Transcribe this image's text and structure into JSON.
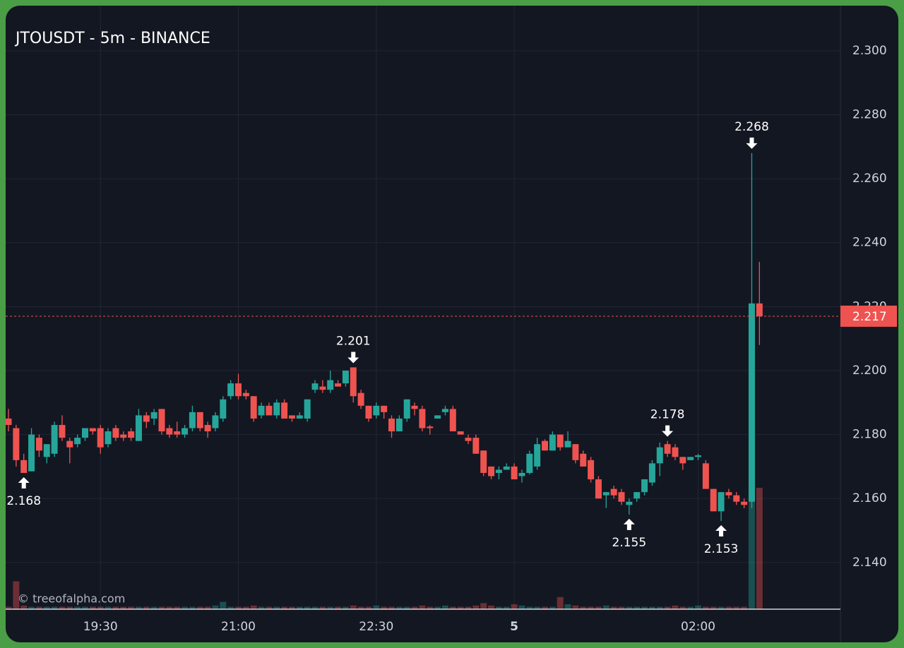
{
  "chart_data": {
    "type": "candlestick",
    "title": "JTOUSDT - 5m - BINANCE",
    "watermark": "© treeofalpha.com",
    "categories": [
      null,
      null,
      null,
      null,
      null,
      null,
      null,
      null,
      null,
      null,
      null,
      null,
      "19:30",
      null,
      null,
      null,
      null,
      null,
      null,
      null,
      null,
      null,
      null,
      null,
      null,
      null,
      null,
      null,
      null,
      null,
      "21:00",
      null,
      null,
      null,
      null,
      null,
      null,
      null,
      null,
      null,
      null,
      null,
      null,
      null,
      null,
      null,
      null,
      null,
      "22:30",
      null,
      null,
      null,
      null,
      null,
      null,
      null,
      null,
      null,
      null,
      null,
      null,
      null,
      null,
      null,
      null,
      null,
      "5",
      null,
      null,
      null,
      null,
      null,
      null,
      null,
      null,
      null,
      null,
      null,
      null,
      null,
      null,
      null,
      null,
      null,
      null,
      null,
      null,
      null,
      null,
      null,
      "02:00",
      null,
      null,
      null,
      null,
      null,
      null,
      null,
      null
    ],
    "open": [
      2.185,
      2.182,
      2.172,
      2.1685,
      2.179,
      2.173,
      2.174,
      2.183,
      2.178,
      2.177,
      2.179,
      2.182,
      2.182,
      2.177,
      2.182,
      2.18,
      2.181,
      2.178,
      2.186,
      2.185,
      2.188,
      2.182,
      2.181,
      2.18,
      2.182,
      2.187,
      2.183,
      2.182,
      2.185,
      2.192,
      2.196,
      2.193,
      2.192,
      2.186,
      2.189,
      2.186,
      2.19,
      2.186,
      2.185,
      2.185,
      2.194,
      2.195,
      2.194,
      2.196,
      2.196,
      2.201,
      2.193,
      2.189,
      2.186,
      2.189,
      2.185,
      2.181,
      2.185,
      2.189,
      2.188,
      2.1825,
      2.185,
      2.187,
      2.188,
      2.181,
      2.179,
      2.179,
      2.175,
      2.17,
      2.168,
      2.169,
      2.17,
      2.167,
      2.168,
      2.17,
      2.178,
      2.175,
      2.18,
      2.176,
      2.177,
      2.174,
      2.172,
      2.166,
      2.161,
      2.163,
      2.162,
      2.158,
      2.16,
      2.162,
      2.165,
      2.171,
      2.177,
      2.176,
      2.173,
      2.172,
      2.173,
      2.171,
      2.163,
      2.156,
      2.162,
      2.161,
      2.159,
      2.159,
      2.221
    ],
    "high": [
      2.188,
      2.183,
      2.174,
      2.182,
      2.18,
      2.177,
      2.184,
      2.186,
      2.179,
      2.18,
      2.182,
      2.182,
      2.183,
      2.182,
      2.183,
      2.181,
      2.182,
      2.188,
      2.187,
      2.188,
      2.188,
      2.183,
      2.184,
      2.183,
      2.189,
      2.187,
      2.184,
      2.187,
      2.192,
      2.197,
      2.199,
      2.194,
      2.192,
      2.19,
      2.19,
      2.191,
      2.191,
      2.186,
      2.187,
      2.191,
      2.197,
      2.197,
      2.2,
      2.197,
      2.2,
      2.201,
      2.194,
      2.189,
      2.19,
      2.189,
      2.186,
      2.186,
      2.191,
      2.19,
      2.189,
      2.183,
      2.186,
      2.189,
      2.189,
      2.181,
      2.18,
      2.18,
      2.175,
      2.17,
      2.17,
      2.171,
      2.171,
      2.169,
      2.175,
      2.179,
      2.1785,
      2.181,
      2.18,
      2.181,
      2.177,
      2.175,
      2.173,
      2.167,
      2.162,
      2.164,
      2.163,
      2.16,
      2.162,
      2.166,
      2.172,
      2.1775,
      2.178,
      2.177,
      2.173,
      2.173,
      2.174,
      2.172,
      2.163,
      2.162,
      2.163,
      2.162,
      2.16,
      2.268,
      2.234
    ],
    "low": [
      2.181,
      2.17,
      2.168,
      2.1685,
      2.173,
      2.171,
      2.173,
      2.178,
      2.171,
      2.176,
      2.178,
      2.18,
      2.174,
      2.176,
      2.178,
      2.178,
      2.178,
      2.178,
      2.182,
      2.183,
      2.18,
      2.179,
      2.179,
      2.179,
      2.181,
      2.181,
      2.179,
      2.181,
      2.184,
      2.191,
      2.191,
      2.191,
      2.184,
      2.185,
      2.186,
      2.185,
      2.185,
      2.184,
      2.185,
      2.184,
      2.193,
      2.193,
      2.193,
      2.195,
      2.195,
      2.19,
      2.188,
      2.184,
      2.185,
      2.185,
      2.179,
      2.181,
      2.184,
      2.186,
      2.181,
      2.18,
      2.185,
      2.186,
      2.181,
      2.18,
      2.177,
      2.174,
      2.167,
      2.166,
      2.166,
      2.169,
      2.166,
      2.165,
      2.1675,
      2.169,
      2.175,
      2.175,
      2.175,
      2.176,
      2.171,
      2.17,
      2.165,
      2.16,
      2.157,
      2.16,
      2.158,
      2.155,
      2.159,
      2.161,
      2.164,
      2.167,
      2.173,
      2.172,
      2.169,
      2.172,
      2.172,
      2.163,
      2.156,
      2.153,
      2.16,
      2.158,
      2.157,
      2.157,
      2.208
    ],
    "close": [
      2.183,
      2.172,
      2.168,
      2.18,
      2.175,
      2.177,
      2.183,
      2.179,
      2.176,
      2.179,
      2.182,
      2.181,
      2.176,
      2.181,
      2.179,
      2.179,
      2.179,
      2.186,
      2.184,
      2.187,
      2.181,
      2.18,
      2.18,
      2.182,
      2.187,
      2.182,
      2.181,
      2.186,
      2.191,
      2.196,
      2.192,
      2.192,
      2.185,
      2.189,
      2.186,
      2.19,
      2.185,
      2.185,
      2.186,
      2.191,
      2.196,
      2.194,
      2.197,
      2.195,
      2.2,
      2.192,
      2.189,
      2.185,
      2.189,
      2.187,
      2.181,
      2.185,
      2.191,
      2.188,
      2.182,
      2.182,
      2.186,
      2.188,
      2.181,
      2.18,
      2.178,
      2.174,
      2.168,
      2.167,
      2.169,
      2.17,
      2.166,
      2.168,
      2.174,
      2.177,
      2.175,
      2.18,
      2.176,
      2.178,
      2.172,
      2.17,
      2.166,
      2.16,
      2.162,
      2.161,
      2.159,
      2.159,
      2.162,
      2.166,
      2.171,
      2.176,
      2.174,
      2.173,
      2.171,
      2.173,
      2.1735,
      2.163,
      2.156,
      2.162,
      2.161,
      2.159,
      2.158,
      2.221,
      2.217
    ],
    "volume": [
      2,
      23,
      3,
      2,
      2,
      2,
      2,
      2,
      2,
      2,
      2,
      2,
      2,
      2,
      2,
      2,
      2,
      2,
      2,
      2,
      2,
      2,
      2,
      2,
      2,
      2,
      2,
      3,
      6,
      2,
      2,
      2,
      3,
      2,
      2,
      2,
      2,
      2,
      2,
      2,
      2,
      2,
      2,
      2,
      2,
      3,
      2,
      2,
      3,
      2,
      2,
      2,
      2,
      2,
      3,
      2,
      2,
      3,
      2,
      2,
      2,
      3,
      5,
      3,
      2,
      2,
      4,
      3,
      2,
      2,
      2,
      2,
      10,
      4,
      3,
      2,
      2,
      2,
      3,
      2,
      2,
      2,
      2,
      2,
      2,
      2,
      2,
      3,
      2,
      2,
      3,
      2,
      2,
      2,
      2,
      2,
      2,
      100,
      100
    ],
    "up_color": "#26a69a",
    "down_color": "#ef5350",
    "last_price": 2.217,
    "annotations": [
      {
        "value": 2.168,
        "at": "low"
      },
      {
        "value": 2.201,
        "at": "high"
      },
      {
        "value": 2.155,
        "at": "low"
      },
      {
        "value": 2.178,
        "at": "high"
      },
      {
        "value": 2.153,
        "at": "low"
      },
      {
        "value": 2.268,
        "at": "high"
      }
    ],
    "ylim": [
      2.1254,
      2.3141
    ],
    "yticks": [
      {
        "value": 2.14,
        "label": "2.140"
      },
      {
        "value": 2.16,
        "label": "2.160"
      },
      {
        "value": 2.18,
        "label": "2.180"
      },
      {
        "value": 2.2,
        "label": "2.200"
      },
      {
        "value": 2.22,
        "label": "2.220"
      },
      {
        "value": 2.24,
        "label": "2.240"
      },
      {
        "value": 2.26,
        "label": "2.260"
      },
      {
        "value": 2.28,
        "label": "2.280"
      },
      {
        "value": 2.3,
        "label": "2.300"
      }
    ],
    "grid": true
  }
}
